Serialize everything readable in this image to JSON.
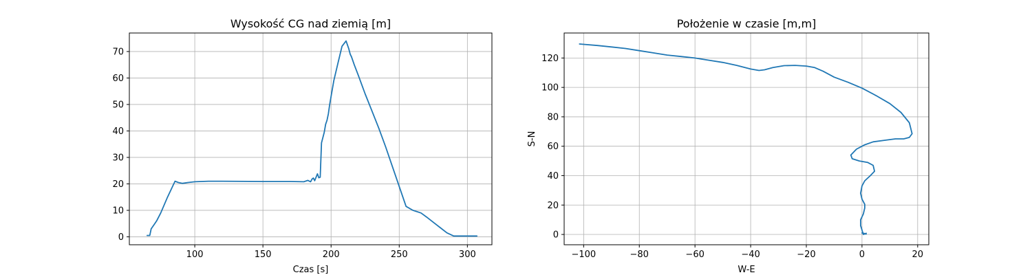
{
  "chart_data": [
    {
      "type": "line",
      "title": "Wysokość CG nad ziemią [m]",
      "xlabel": "Czas [s]",
      "ylabel": "",
      "xlim": [
        52,
        318
      ],
      "ylim": [
        -3,
        77
      ],
      "xticks": [
        100,
        150,
        200,
        250,
        300
      ],
      "yticks": [
        0,
        10,
        20,
        30,
        40,
        50,
        60,
        70
      ],
      "grid": true,
      "series": [
        {
          "color": "#1f77b4",
          "x": [
            65,
            67,
            68,
            70,
            72,
            75,
            80,
            85.5,
            88,
            91,
            95,
            100,
            110,
            120,
            150,
            170,
            180,
            183,
            185,
            186,
            187,
            188,
            189,
            190,
            191,
            192,
            193,
            194,
            195,
            196,
            197,
            198,
            199,
            200,
            202,
            205,
            208,
            211,
            213,
            214,
            215,
            217,
            220,
            225,
            230,
            235,
            240,
            245,
            250,
            255,
            260,
            266,
            270,
            275,
            280,
            285,
            290,
            292,
            300,
            307
          ],
          "y": [
            0.5,
            0.5,
            3,
            4.5,
            6,
            9,
            15,
            21,
            20.5,
            20.2,
            20.5,
            20.8,
            21,
            21,
            20.9,
            20.9,
            20.8,
            21.3,
            20.8,
            21.8,
            22.2,
            21.2,
            22.5,
            23.8,
            22.3,
            22.5,
            35.5,
            37.5,
            39.5,
            42.5,
            44,
            46.5,
            50,
            53,
            59,
            65.5,
            72,
            74,
            71,
            69,
            68,
            65,
            61,
            54,
            47.5,
            41,
            34,
            26.5,
            19,
            11.5,
            10,
            9,
            7.5,
            5.5,
            3.5,
            1.5,
            0.3,
            0.3,
            0.3,
            0.3
          ]
        }
      ]
    },
    {
      "type": "line",
      "title": "Położenie w czasie [m,m]",
      "xlabel": "W-E",
      "ylabel": "S-N",
      "xlim": [
        -107,
        24
      ],
      "ylim": [
        -7,
        137
      ],
      "xticks": [
        -100,
        -80,
        -60,
        -40,
        -20,
        0,
        20
      ],
      "yticks": [
        0,
        20,
        40,
        60,
        80,
        100,
        120
      ],
      "grid": true,
      "series": [
        {
          "color": "#1f77b4",
          "x": [
            -101.5,
            -95,
            -90,
            -85,
            -80,
            -75,
            -70,
            -65,
            -60,
            -55,
            -50,
            -45,
            -40,
            -37,
            -35,
            -32,
            -28,
            -24,
            -20,
            -17,
            -14,
            -10,
            -5,
            0,
            5,
            10,
            14,
            17,
            18,
            17,
            15,
            12,
            8,
            4,
            1,
            -2,
            -4,
            -3.5,
            -1,
            2,
            4,
            4.5,
            3,
            1,
            0,
            -0.5,
            0,
            1,
            1,
            0.5,
            -0.5,
            -0.5,
            0,
            0.3,
            0.5,
            1.5,
            1.5,
            0.5,
            0
          ],
          "y": [
            129.5,
            128.5,
            127.5,
            126.5,
            125,
            123.5,
            122,
            121,
            120,
            118.5,
            117,
            115,
            112.5,
            111.5,
            112,
            113.5,
            114.8,
            115,
            114.5,
            113.5,
            111,
            107,
            103.5,
            99.5,
            94.5,
            89,
            83,
            76,
            68.5,
            66,
            65,
            65,
            64,
            63,
            61,
            58,
            54,
            51.5,
            50,
            49,
            47,
            43,
            40,
            36.5,
            33,
            28,
            24,
            20.5,
            18,
            14,
            10,
            6,
            3,
            1,
            0,
            0.8,
            0.3,
            0.8,
            1
          ]
        }
      ]
    }
  ]
}
